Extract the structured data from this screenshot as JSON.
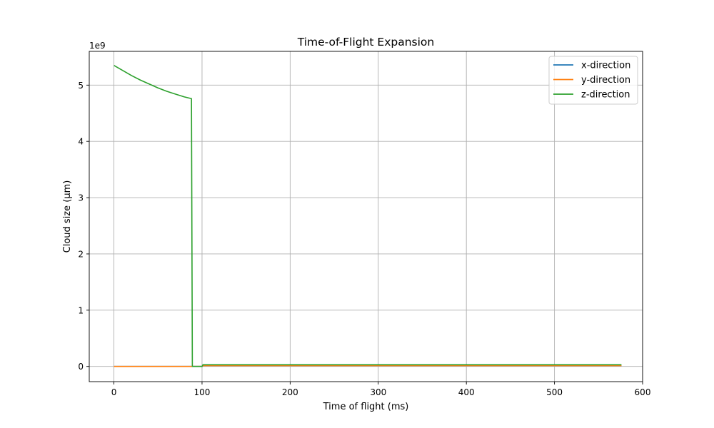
{
  "chart_data": {
    "type": "line",
    "title": "Time-of-Flight Expansion",
    "xlabel": "Time of flight (ms)",
    "ylabel": "Cloud size (μm)",
    "y_offset_text": "1e9",
    "xlim": [
      -28,
      600
    ],
    "ylim": [
      -0.27,
      5.6
    ],
    "y_scale_factor": 1000000000,
    "xticks": [
      0,
      100,
      200,
      300,
      400,
      500,
      600
    ],
    "xtick_labels": [
      "0",
      "100",
      "200",
      "300",
      "400",
      "500",
      "600"
    ],
    "yticks": [
      0,
      1,
      2,
      3,
      4,
      5
    ],
    "ytick_labels": [
      "0",
      "1",
      "2",
      "3",
      "4",
      "5"
    ],
    "grid": true,
    "legend_position": "top-right",
    "series": [
      {
        "name": "x-direction",
        "color": "#1f77b4",
        "x": [
          0,
          88,
          89,
          100,
          101,
          576
        ],
        "y": [
          0,
          0,
          0,
          0,
          0.015,
          0.015
        ]
      },
      {
        "name": "y-direction",
        "color": "#ff7f0e",
        "x": [
          0,
          88,
          89,
          100,
          101,
          576
        ],
        "y": [
          0,
          0,
          0,
          0,
          0.015,
          0.015
        ]
      },
      {
        "name": "z-direction",
        "color": "#2ca02c",
        "x": [
          0,
          10,
          20,
          30,
          40,
          50,
          60,
          70,
          80,
          88,
          89,
          100,
          101,
          576
        ],
        "y": [
          5.35,
          5.26,
          5.17,
          5.09,
          5.02,
          4.95,
          4.89,
          4.84,
          4.79,
          4.76,
          0,
          0,
          0.03,
          0.03
        ]
      }
    ]
  }
}
